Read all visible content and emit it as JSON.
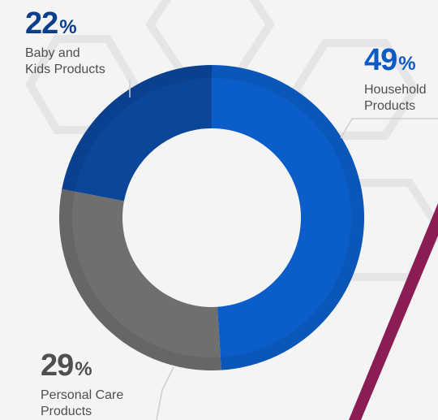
{
  "chart_data": {
    "type": "pie",
    "title": "",
    "series": [
      {
        "name": "Household Products",
        "value": 49,
        "label": "49",
        "suffix": "%",
        "description": "Household\nProducts",
        "color": "#0b5ec9"
      },
      {
        "name": "Personal Care Products",
        "value": 29,
        "label": "29",
        "suffix": "%",
        "description": "Personal Care\nProducts",
        "color": "#6f6f6f"
      },
      {
        "name": "Baby and Kids Products",
        "value": 22,
        "label": "22",
        "suffix": "%",
        "description": "Baby and\nKids Products",
        "color": "#0b4699"
      }
    ],
    "donut": true
  },
  "labels": {
    "baby": {
      "percent": "22",
      "suffix": "%",
      "text": "Baby and\nKids Products"
    },
    "household": {
      "percent": "49",
      "suffix": "%",
      "text": "Household\nProducts"
    },
    "personal": {
      "percent": "29",
      "suffix": "%",
      "text": "Personal Care\nProducts"
    }
  },
  "colors": {
    "background": "#f4f4f5",
    "accent_stripe": "#8b1d55",
    "household": "#0b5ec9",
    "personal": "#6f6f6f",
    "baby": "#0b4699",
    "hexagon": "#e8e8ea",
    "leader_line": "#cfcfd2"
  }
}
